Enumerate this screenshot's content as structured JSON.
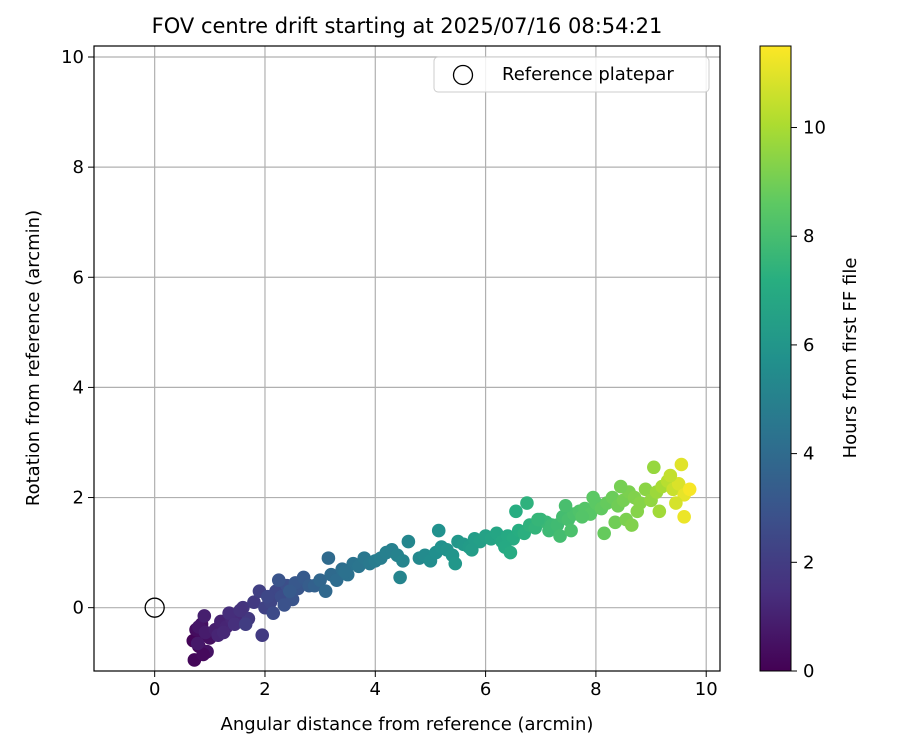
{
  "chart_data": {
    "type": "scatter",
    "title": "FOV centre drift starting at 2025/07/16 08:54:21",
    "xlabel": "Angular distance from reference (arcmin)",
    "ylabel": "Rotation from reference (arcmin)",
    "xlim": [
      -1.1,
      10.25
    ],
    "ylim": [
      -1.15,
      10.2
    ],
    "xticks": [
      "0",
      "2",
      "4",
      "6",
      "8",
      "10"
    ],
    "yticks": [
      "0",
      "2",
      "4",
      "6",
      "8",
      "10"
    ],
    "grid": true,
    "legend": {
      "position": "top-right",
      "entries": [
        "Reference platepar"
      ]
    },
    "reference_point": {
      "x": 0,
      "y": 0
    },
    "colorbar": {
      "label": "Hours from first FF file",
      "range": [
        0,
        11.5
      ],
      "ticks": [
        "0",
        "2",
        "4",
        "6",
        "8",
        "10"
      ],
      "colormap": "viridis"
    },
    "series": [
      {
        "color_by": "hours",
        "x": [
          0.7,
          0.8,
          0.9,
          0.75,
          0.85,
          0.95,
          0.72,
          0.88,
          1.0,
          0.8,
          0.78,
          0.92,
          1.1,
          1.2,
          1.3,
          1.4,
          1.5,
          1.15,
          1.35,
          1.45,
          1.6,
          1.7,
          1.8,
          1.65,
          1.9,
          1.25,
          1.55,
          0.9,
          2.0,
          2.1,
          2.2,
          2.3,
          2.4,
          2.5,
          2.6,
          2.15,
          2.35,
          2.55,
          2.7,
          2.8,
          2.05,
          1.95,
          2.45,
          2.25,
          2.9,
          3.0,
          3.1,
          3.2,
          3.3,
          3.4,
          3.5,
          3.6,
          3.7,
          3.8,
          3.9,
          4.0,
          4.1,
          4.2,
          4.3,
          4.4,
          4.5,
          4.6,
          3.15,
          3.45,
          4.45,
          4.8,
          4.9,
          5.0,
          5.1,
          5.2,
          5.3,
          5.4,
          5.5,
          5.6,
          5.7,
          5.8,
          5.9,
          6.0,
          6.1,
          6.2,
          5.15,
          5.45,
          5.75,
          6.3,
          6.4,
          6.5,
          6.6,
          6.7,
          6.8,
          6.9,
          7.0,
          7.1,
          7.2,
          6.35,
          6.55,
          6.75,
          6.95,
          7.15,
          6.45,
          7.3,
          7.4,
          7.5,
          7.6,
          7.7,
          7.8,
          7.9,
          8.0,
          7.35,
          7.55,
          7.75,
          7.95,
          7.45,
          8.15,
          8.1,
          8.2,
          8.3,
          8.4,
          8.5,
          8.6,
          8.7,
          8.8,
          8.9,
          8.35,
          8.55,
          8.75,
          8.45,
          8.65,
          9.0,
          9.1,
          9.2,
          9.3,
          9.4,
          9.5,
          9.6,
          9.7,
          9.15,
          9.35,
          9.55,
          9.05,
          9.45,
          9.6
        ],
        "y": [
          -0.6,
          -0.7,
          -0.5,
          -0.4,
          -0.3,
          -0.8,
          -0.95,
          -0.85,
          -0.55,
          -0.35,
          -0.65,
          -0.45,
          -0.4,
          -0.25,
          -0.35,
          -0.2,
          -0.15,
          -0.5,
          -0.1,
          -0.3,
          0.0,
          -0.2,
          0.1,
          -0.3,
          0.3,
          -0.45,
          -0.05,
          -0.15,
          0.0,
          0.1,
          0.3,
          0.2,
          0.4,
          0.15,
          0.35,
          -0.1,
          0.05,
          0.45,
          0.55,
          0.4,
          0.2,
          -0.5,
          0.3,
          0.5,
          0.4,
          0.5,
          0.3,
          0.6,
          0.5,
          0.7,
          0.6,
          0.8,
          0.75,
          0.9,
          0.8,
          0.85,
          0.9,
          1.0,
          1.05,
          0.95,
          0.85,
          1.2,
          0.9,
          0.65,
          0.55,
          0.9,
          0.95,
          0.85,
          1.0,
          1.1,
          1.05,
          0.95,
          1.2,
          1.15,
          1.1,
          1.25,
          1.2,
          1.3,
          1.25,
          1.35,
          1.4,
          0.8,
          1.05,
          1.2,
          1.3,
          1.25,
          1.4,
          1.35,
          1.5,
          1.45,
          1.6,
          1.55,
          1.5,
          1.1,
          1.75,
          1.9,
          1.6,
          1.4,
          1.0,
          1.5,
          1.65,
          1.6,
          1.7,
          1.75,
          1.8,
          1.7,
          1.9,
          1.3,
          1.4,
          1.65,
          2.0,
          1.85,
          1.35,
          1.8,
          1.9,
          2.0,
          1.85,
          1.95,
          2.1,
          2.0,
          1.9,
          2.15,
          1.55,
          1.6,
          1.75,
          2.2,
          1.5,
          1.95,
          2.1,
          2.2,
          2.3,
          2.15,
          2.25,
          2.05,
          2.15,
          1.75,
          2.4,
          2.6,
          2.55,
          1.9,
          1.65
        ],
        "hours": [
          0.1,
          0.2,
          0.3,
          0.4,
          0.5,
          0.6,
          0.2,
          0.3,
          0.5,
          0.7,
          0.8,
          0.9,
          1.0,
          1.1,
          1.2,
          1.3,
          1.4,
          1.2,
          1.5,
          1.6,
          1.8,
          1.9,
          2.0,
          2.1,
          2.2,
          1.3,
          1.7,
          1.0,
          2.3,
          2.4,
          2.5,
          2.7,
          2.8,
          3.0,
          3.1,
          2.6,
          2.9,
          3.2,
          3.3,
          3.4,
          2.5,
          2.0,
          3.3,
          3.0,
          3.6,
          3.8,
          3.9,
          4.0,
          4.1,
          4.2,
          4.3,
          4.4,
          4.5,
          4.6,
          4.7,
          4.8,
          4.9,
          5.0,
          5.0,
          5.1,
          5.2,
          5.3,
          4.0,
          4.3,
          5.2,
          5.4,
          5.5,
          5.6,
          5.7,
          5.8,
          5.9,
          6.0,
          6.1,
          6.2,
          6.3,
          6.4,
          6.5,
          6.6,
          6.7,
          6.8,
          5.8,
          6.1,
          6.4,
          6.9,
          7.0,
          7.1,
          7.2,
          7.3,
          7.4,
          7.5,
          7.6,
          7.7,
          7.8,
          7.0,
          7.2,
          7.4,
          7.6,
          7.8,
          7.1,
          7.9,
          8.0,
          8.1,
          8.2,
          8.3,
          8.4,
          8.5,
          8.6,
          8.0,
          8.2,
          8.4,
          8.6,
          8.1,
          8.8,
          8.7,
          8.8,
          8.9,
          9.0,
          9.1,
          9.2,
          9.3,
          9.4,
          9.5,
          9.0,
          9.2,
          9.4,
          9.1,
          9.3,
          9.6,
          9.8,
          10.0,
          10.3,
          10.6,
          10.9,
          11.1,
          11.4,
          9.9,
          10.5,
          11.0,
          9.7,
          10.8,
          11.2
        ]
      }
    ]
  }
}
